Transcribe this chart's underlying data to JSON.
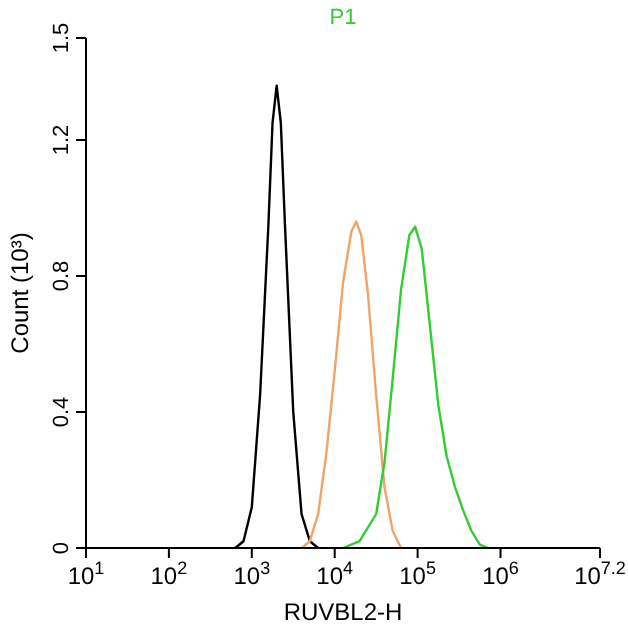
{
  "chart_data": {
    "type": "line",
    "xlabel": "RUVBL2-H",
    "ylabel": "Count (10³)",
    "log": "x",
    "xlim": [
      10,
      15848932
    ],
    "xticks": [
      {
        "value": 10,
        "label": "10$^{1}$"
      },
      {
        "value": 100,
        "label": "10$^{2}$"
      },
      {
        "value": 1000,
        "label": "10$^{3}$"
      },
      {
        "value": 10000,
        "label": "10$^{4}$"
      },
      {
        "value": 100000,
        "label": "10$^{5}$"
      },
      {
        "value": 1000000,
        "label": "10$^{6}$"
      },
      {
        "value": 15848932,
        "label": "10$^{7.2}$"
      }
    ],
    "ylim": [
      0,
      1.5
    ],
    "yticks": [
      0,
      0.4,
      0.8,
      1.2,
      1.5
    ],
    "grid": false,
    "legend": false,
    "marker": "none",
    "line_style": "solid",
    "series": [
      {
        "color": "#000000",
        "x": [
          631,
          794,
          1000,
          1259,
          1585,
          1778,
          1995,
          2239,
          2512,
          3162,
          3981,
          5012,
          6310
        ],
        "values": [
          0,
          0.02,
          0.12,
          0.45,
          0.95,
          1.25,
          1.36,
          1.25,
          0.95,
          0.4,
          0.1,
          0.02,
          0
        ]
      },
      {
        "color": "#f0a468",
        "x": [
          3981,
          5012,
          6310,
          7943,
          10000,
          12589,
          15849,
          18197,
          20893,
          25119,
          31623,
          39811,
          50119,
          63096
        ],
        "values": [
          0,
          0.02,
          0.1,
          0.28,
          0.52,
          0.78,
          0.93,
          0.96,
          0.92,
          0.75,
          0.45,
          0.18,
          0.05,
          0
        ]
      },
      {
        "name": "P1",
        "color": "#33cc33",
        "x": [
          12589,
          19953,
          31623,
          39811,
          50119,
          63096,
          79433,
          93325,
          112202,
          141254,
          177828,
          223872,
          281838,
          354813,
          446684,
          562341,
          707946
        ],
        "values": [
          0,
          0.02,
          0.1,
          0.25,
          0.5,
          0.76,
          0.92,
          0.945,
          0.88,
          0.65,
          0.42,
          0.27,
          0.18,
          0.11,
          0.05,
          0.01,
          0
        ]
      }
    ]
  }
}
